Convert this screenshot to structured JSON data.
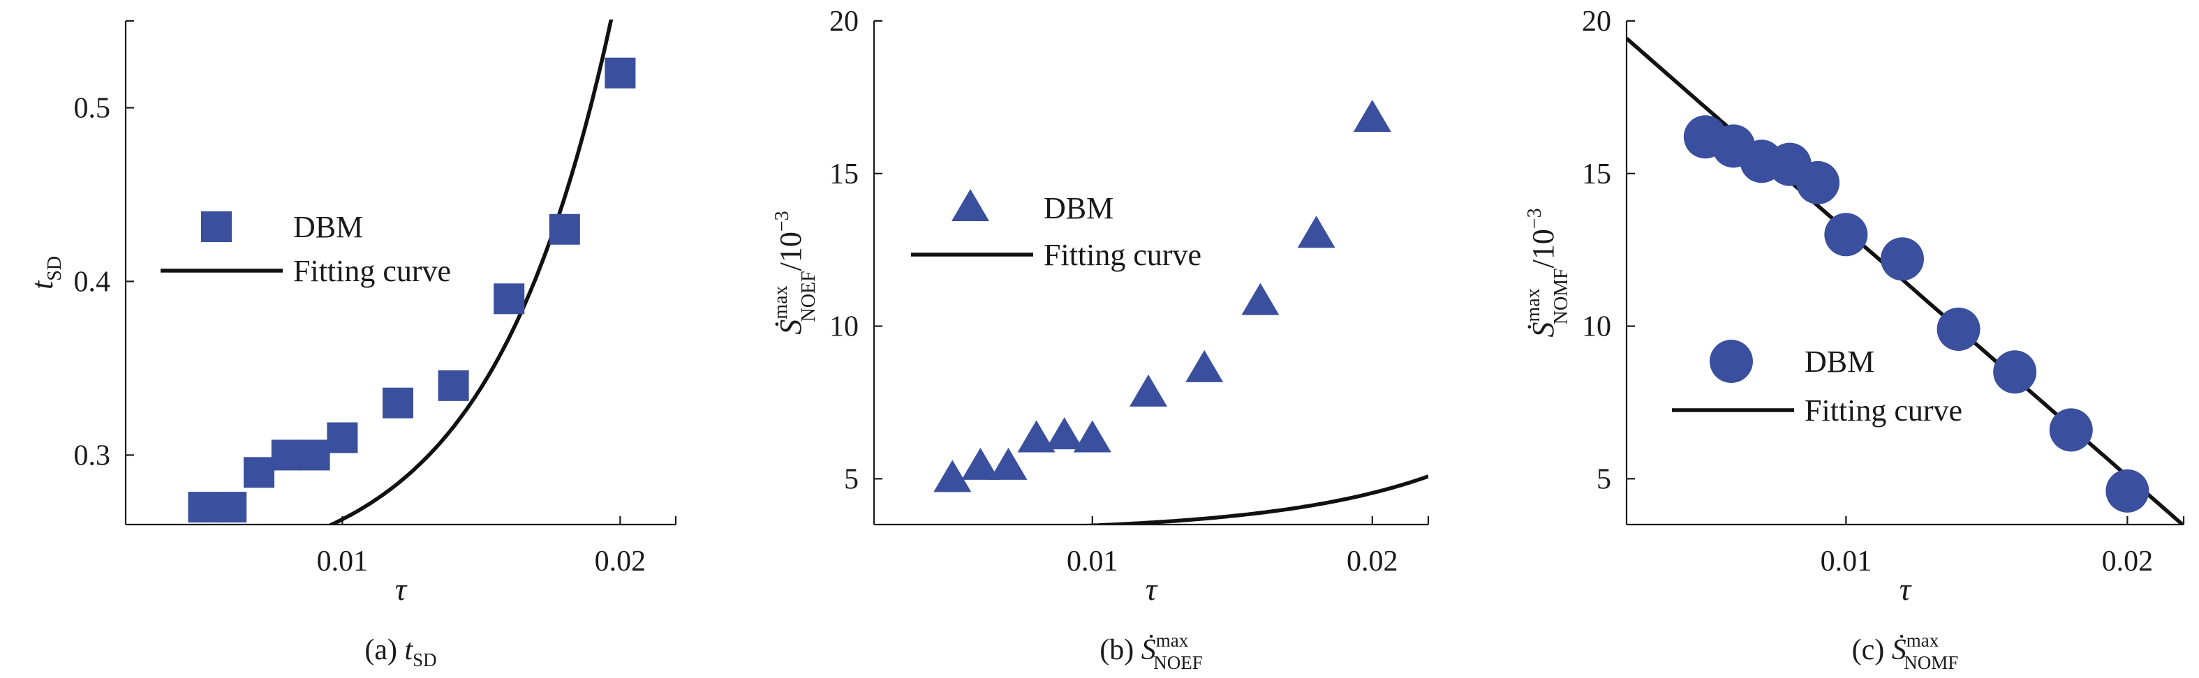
{
  "colors": {
    "marker": "#3a4f9d",
    "marker_dark": "#2e3f8a",
    "line": "#111111"
  },
  "chart_data": [
    {
      "type": "scatter",
      "id": "a",
      "caption": {
        "prefix": "(a) ",
        "var": "t",
        "sub": "SD"
      },
      "xlabel": "τ",
      "ylabel": {
        "var": "t",
        "sub": "SD"
      },
      "xlim": [
        0.0022,
        0.022
      ],
      "ylim": [
        0.26,
        0.55
      ],
      "xticks": [
        0.01,
        0.02
      ],
      "xtick_labels": [
        "0.01",
        "0.02"
      ],
      "yticks": [
        0.3,
        0.4,
        0.5
      ],
      "ytick_labels": [
        "0.3",
        "0.4",
        "0.5"
      ],
      "marker": "square",
      "series": [
        {
          "name": "DBM",
          "x": [
            0.005,
            0.006,
            0.007,
            0.008,
            0.009,
            0.01,
            0.012,
            0.014,
            0.016,
            0.018,
            0.02
          ],
          "y": [
            0.27,
            0.27,
            0.29,
            0.3,
            0.3,
            0.31,
            0.33,
            0.34,
            0.39,
            0.43,
            0.52
          ]
        }
      ],
      "fit": {
        "name": "Fitting curve",
        "model": "exp",
        "a": 0.227,
        "b": 0.19,
        "c": 227
      },
      "legend": {
        "marker_label": "DBM",
        "line_label": "Fitting curve",
        "placement": "center-left"
      }
    },
    {
      "type": "scatter",
      "id": "b",
      "caption": {
        "prefix": "(b) ",
        "var": "Ṡ",
        "sup": "max",
        "sub": "NOEF"
      },
      "xlabel": "τ",
      "ylabel": {
        "var": "Ṡ",
        "sup": "max",
        "sub": "NOEF",
        "suffix": "/10",
        "exp": "−3"
      },
      "xlim": [
        0.0022,
        0.022
      ],
      "ylim": [
        3.5,
        20
      ],
      "xticks": [
        0.01,
        0.02
      ],
      "xtick_labels": [
        "0.01",
        "0.02"
      ],
      "yticks": [
        5,
        10,
        15,
        20
      ],
      "ytick_labels": [
        "5",
        "10",
        "15",
        "20"
      ],
      "marker": "triangle",
      "series": [
        {
          "name": "DBM",
          "x": [
            0.005,
            0.006,
            0.007,
            0.008,
            0.009,
            0.01,
            0.012,
            0.014,
            0.016,
            0.018,
            0.02
          ],
          "y": [
            5.0,
            5.4,
            5.4,
            6.3,
            6.4,
            6.3,
            7.8,
            8.6,
            10.8,
            13.0,
            16.8
          ]
        }
      ],
      "fit": {
        "name": "Fitting curve",
        "model": "exp",
        "a": 3.25,
        "b": 0.756,
        "c": 176.8
      },
      "legend": {
        "marker_label": "DBM",
        "line_label": "Fitting curve",
        "placement": "top-left"
      }
    },
    {
      "type": "scatter",
      "id": "c",
      "caption": {
        "prefix": "(c) ",
        "var": "Ṡ",
        "sup": "max",
        "sub": "NOMF"
      },
      "xlabel": "τ",
      "ylabel": {
        "var": "Ṡ",
        "sup": "max",
        "sub": "NOMF",
        "suffix": "/10",
        "exp": "−3"
      },
      "xlim": [
        0.0022,
        0.022
      ],
      "ylim": [
        3.5,
        20
      ],
      "xticks": [
        0.01,
        0.02
      ],
      "xtick_labels": [
        "0.01",
        "0.02"
      ],
      "yticks": [
        5,
        10,
        15,
        20
      ],
      "ytick_labels": [
        "5",
        "10",
        "15",
        "20"
      ],
      "marker": "circle",
      "series": [
        {
          "name": "DBM",
          "x": [
            0.005,
            0.006,
            0.007,
            0.008,
            0.009,
            0.01,
            0.012,
            0.014,
            0.016,
            0.018,
            0.02
          ],
          "y": [
            16.2,
            15.9,
            15.4,
            15.3,
            14.7,
            13.0,
            12.2,
            9.9,
            8.5,
            6.6,
            4.6
          ]
        }
      ],
      "fit": {
        "name": "Fitting curve",
        "model": "linear",
        "slope": -806,
        "intercept": 21.2
      },
      "legend": {
        "marker_label": "DBM",
        "line_label": "Fitting curve",
        "placement": "center-left"
      }
    }
  ]
}
